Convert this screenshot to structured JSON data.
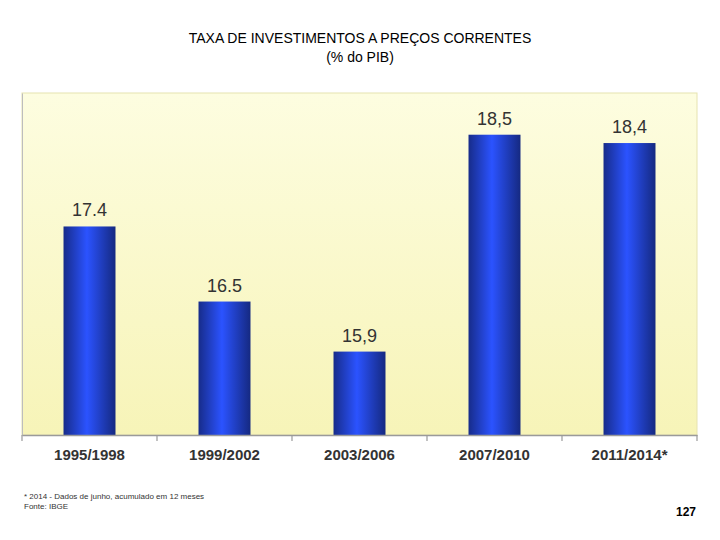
{
  "chart_data": {
    "type": "bar",
    "title": "TAXA DE INVESTIMENTOS A PREÇOS CORRENTES",
    "subtitle": "(% do PIB)",
    "categories": [
      "1995/1998",
      "1999/2002",
      "2003/2006",
      "2007/2010",
      "2011/2014*"
    ],
    "values": [
      17.4,
      16.5,
      15.9,
      18.5,
      18.4
    ],
    "value_labels": [
      "17.4",
      "16.5",
      "15,9",
      "18,5",
      "18,4"
    ],
    "color": "#2343d4",
    "ylim": [
      14.9,
      19.0
    ],
    "data_labels": true,
    "tick_labels": "x",
    "grid": false,
    "footnote": "* 2014 - Dados de junho, acumulado em 12 meses",
    "source": "Fonte: IBGE",
    "page": "127"
  }
}
